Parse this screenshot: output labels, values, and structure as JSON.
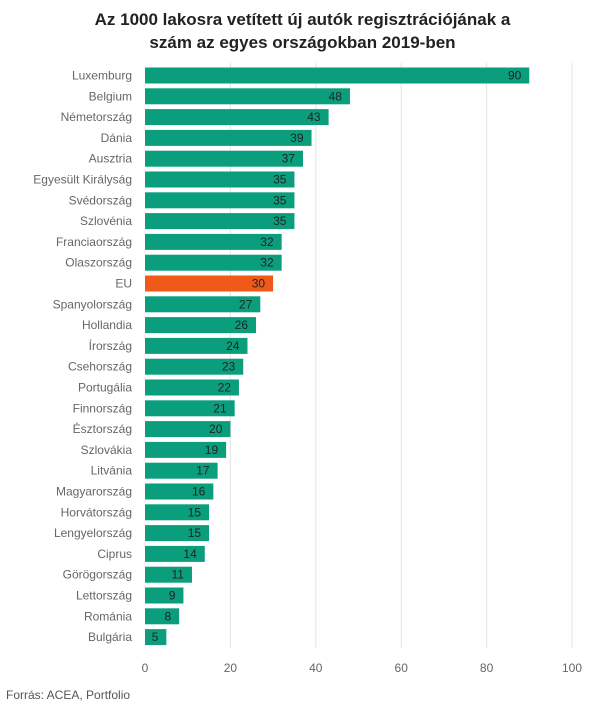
{
  "chart_data": {
    "type": "bar",
    "orientation": "horizontal",
    "title_lines": [
      "Az 1000 lakosra vetített új autók regisztrációjának a",
      "szám az egyes országokban 2019-ben"
    ],
    "categories": [
      "Luxemburg",
      "Belgium",
      "Németország",
      "Dánia",
      "Ausztria",
      "Egyesült Királyság",
      "Svédország",
      "Szlovénia",
      "Franciaország",
      "Olaszország",
      "EU",
      "Spanyolország",
      "Hollandia",
      "Írország",
      "Csehország",
      "Portugália",
      "Finnország",
      "Észtország",
      "Szlovákia",
      "Litvánia",
      "Magyarország",
      "Horvátország",
      "Lengyelország",
      "Ciprus",
      "Görögország",
      "Lettország",
      "Románia",
      "Bulgária"
    ],
    "values": [
      90,
      48,
      43,
      39,
      37,
      35,
      35,
      35,
      32,
      32,
      30,
      27,
      26,
      24,
      23,
      22,
      21,
      20,
      19,
      17,
      16,
      15,
      15,
      14,
      11,
      9,
      8,
      5
    ],
    "highlight_category": "EU",
    "xlim": [
      0,
      100
    ],
    "xticks": [
      0,
      20,
      40,
      60,
      80,
      100
    ],
    "grid": true,
    "colors": {
      "bar": "#0a9e7d",
      "highlight": "#f05a19",
      "grid": "#e4e4e4",
      "label": "#666666",
      "value": "#222222"
    }
  },
  "source": "Forrás: ACEA, Portfolio"
}
